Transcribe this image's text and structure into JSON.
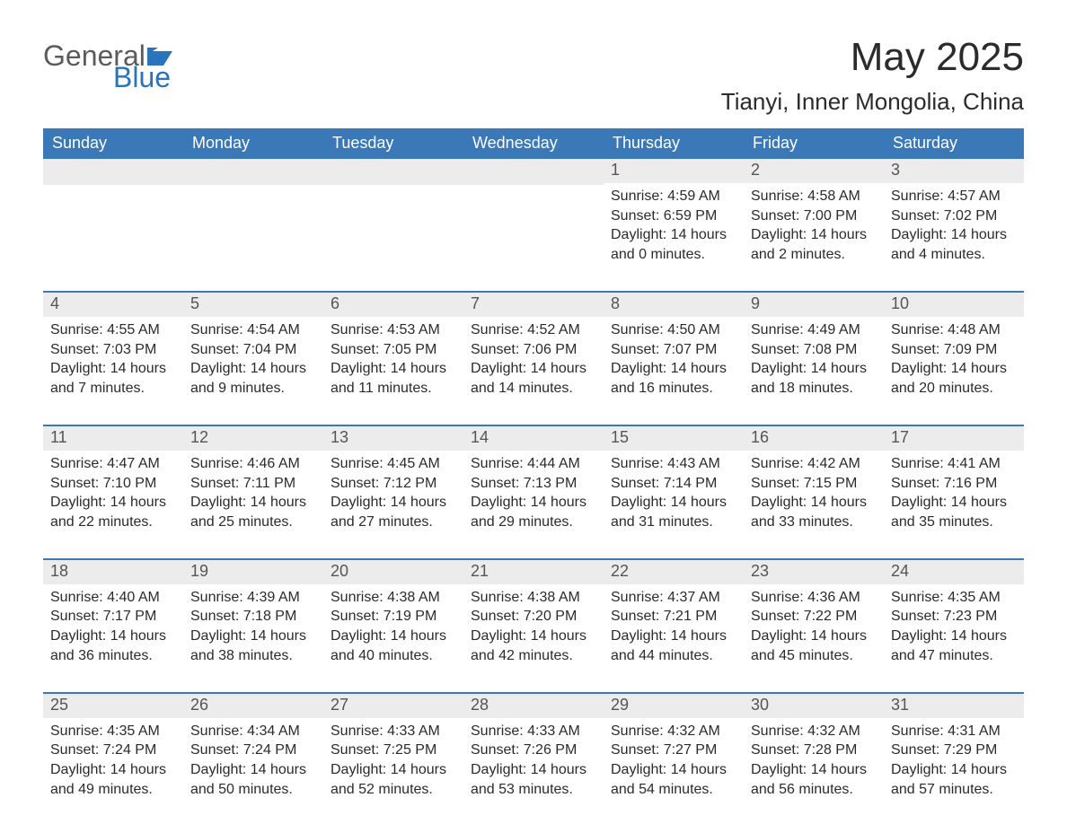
{
  "brand": {
    "word1": "General",
    "word2": "Blue",
    "gray_color": "#5b5b5b",
    "blue_color": "#2a74bb"
  },
  "title": {
    "month": "May 2025",
    "location": "Tianyi, Inner Mongolia, China"
  },
  "styling": {
    "header_bg": "#3a78b8",
    "header_text": "#ffffff",
    "row_divider": "#3a78b8",
    "day_number_bg": "#ececec",
    "day_number_color": "#555555",
    "body_text_color": "#2b2b2b",
    "page_bg": "#ffffff",
    "dow_fontsize": 18,
    "daynum_fontsize": 18,
    "body_fontsize": 16,
    "title_fontsize": 44,
    "location_fontsize": 26
  },
  "days_of_week": [
    "Sunday",
    "Monday",
    "Tuesday",
    "Wednesday",
    "Thursday",
    "Friday",
    "Saturday"
  ],
  "weeks": [
    [
      {
        "blank": true
      },
      {
        "blank": true
      },
      {
        "blank": true
      },
      {
        "blank": true
      },
      {
        "n": 1,
        "sr": "Sunrise: 4:59 AM",
        "ss": "Sunset: 6:59 PM",
        "d1": "Daylight: 14 hours",
        "d2": "and 0 minutes."
      },
      {
        "n": 2,
        "sr": "Sunrise: 4:58 AM",
        "ss": "Sunset: 7:00 PM",
        "d1": "Daylight: 14 hours",
        "d2": "and 2 minutes."
      },
      {
        "n": 3,
        "sr": "Sunrise: 4:57 AM",
        "ss": "Sunset: 7:02 PM",
        "d1": "Daylight: 14 hours",
        "d2": "and 4 minutes."
      }
    ],
    [
      {
        "n": 4,
        "sr": "Sunrise: 4:55 AM",
        "ss": "Sunset: 7:03 PM",
        "d1": "Daylight: 14 hours",
        "d2": "and 7 minutes."
      },
      {
        "n": 5,
        "sr": "Sunrise: 4:54 AM",
        "ss": "Sunset: 7:04 PM",
        "d1": "Daylight: 14 hours",
        "d2": "and 9 minutes."
      },
      {
        "n": 6,
        "sr": "Sunrise: 4:53 AM",
        "ss": "Sunset: 7:05 PM",
        "d1": "Daylight: 14 hours",
        "d2": "and 11 minutes."
      },
      {
        "n": 7,
        "sr": "Sunrise: 4:52 AM",
        "ss": "Sunset: 7:06 PM",
        "d1": "Daylight: 14 hours",
        "d2": "and 14 minutes."
      },
      {
        "n": 8,
        "sr": "Sunrise: 4:50 AM",
        "ss": "Sunset: 7:07 PM",
        "d1": "Daylight: 14 hours",
        "d2": "and 16 minutes."
      },
      {
        "n": 9,
        "sr": "Sunrise: 4:49 AM",
        "ss": "Sunset: 7:08 PM",
        "d1": "Daylight: 14 hours",
        "d2": "and 18 minutes."
      },
      {
        "n": 10,
        "sr": "Sunrise: 4:48 AM",
        "ss": "Sunset: 7:09 PM",
        "d1": "Daylight: 14 hours",
        "d2": "and 20 minutes."
      }
    ],
    [
      {
        "n": 11,
        "sr": "Sunrise: 4:47 AM",
        "ss": "Sunset: 7:10 PM",
        "d1": "Daylight: 14 hours",
        "d2": "and 22 minutes."
      },
      {
        "n": 12,
        "sr": "Sunrise: 4:46 AM",
        "ss": "Sunset: 7:11 PM",
        "d1": "Daylight: 14 hours",
        "d2": "and 25 minutes."
      },
      {
        "n": 13,
        "sr": "Sunrise: 4:45 AM",
        "ss": "Sunset: 7:12 PM",
        "d1": "Daylight: 14 hours",
        "d2": "and 27 minutes."
      },
      {
        "n": 14,
        "sr": "Sunrise: 4:44 AM",
        "ss": "Sunset: 7:13 PM",
        "d1": "Daylight: 14 hours",
        "d2": "and 29 minutes."
      },
      {
        "n": 15,
        "sr": "Sunrise: 4:43 AM",
        "ss": "Sunset: 7:14 PM",
        "d1": "Daylight: 14 hours",
        "d2": "and 31 minutes."
      },
      {
        "n": 16,
        "sr": "Sunrise: 4:42 AM",
        "ss": "Sunset: 7:15 PM",
        "d1": "Daylight: 14 hours",
        "d2": "and 33 minutes."
      },
      {
        "n": 17,
        "sr": "Sunrise: 4:41 AM",
        "ss": "Sunset: 7:16 PM",
        "d1": "Daylight: 14 hours",
        "d2": "and 35 minutes."
      }
    ],
    [
      {
        "n": 18,
        "sr": "Sunrise: 4:40 AM",
        "ss": "Sunset: 7:17 PM",
        "d1": "Daylight: 14 hours",
        "d2": "and 36 minutes."
      },
      {
        "n": 19,
        "sr": "Sunrise: 4:39 AM",
        "ss": "Sunset: 7:18 PM",
        "d1": "Daylight: 14 hours",
        "d2": "and 38 minutes."
      },
      {
        "n": 20,
        "sr": "Sunrise: 4:38 AM",
        "ss": "Sunset: 7:19 PM",
        "d1": "Daylight: 14 hours",
        "d2": "and 40 minutes."
      },
      {
        "n": 21,
        "sr": "Sunrise: 4:38 AM",
        "ss": "Sunset: 7:20 PM",
        "d1": "Daylight: 14 hours",
        "d2": "and 42 minutes."
      },
      {
        "n": 22,
        "sr": "Sunrise: 4:37 AM",
        "ss": "Sunset: 7:21 PM",
        "d1": "Daylight: 14 hours",
        "d2": "and 44 minutes."
      },
      {
        "n": 23,
        "sr": "Sunrise: 4:36 AM",
        "ss": "Sunset: 7:22 PM",
        "d1": "Daylight: 14 hours",
        "d2": "and 45 minutes."
      },
      {
        "n": 24,
        "sr": "Sunrise: 4:35 AM",
        "ss": "Sunset: 7:23 PM",
        "d1": "Daylight: 14 hours",
        "d2": "and 47 minutes."
      }
    ],
    [
      {
        "n": 25,
        "sr": "Sunrise: 4:35 AM",
        "ss": "Sunset: 7:24 PM",
        "d1": "Daylight: 14 hours",
        "d2": "and 49 minutes."
      },
      {
        "n": 26,
        "sr": "Sunrise: 4:34 AM",
        "ss": "Sunset: 7:24 PM",
        "d1": "Daylight: 14 hours",
        "d2": "and 50 minutes."
      },
      {
        "n": 27,
        "sr": "Sunrise: 4:33 AM",
        "ss": "Sunset: 7:25 PM",
        "d1": "Daylight: 14 hours",
        "d2": "and 52 minutes."
      },
      {
        "n": 28,
        "sr": "Sunrise: 4:33 AM",
        "ss": "Sunset: 7:26 PM",
        "d1": "Daylight: 14 hours",
        "d2": "and 53 minutes."
      },
      {
        "n": 29,
        "sr": "Sunrise: 4:32 AM",
        "ss": "Sunset: 7:27 PM",
        "d1": "Daylight: 14 hours",
        "d2": "and 54 minutes."
      },
      {
        "n": 30,
        "sr": "Sunrise: 4:32 AM",
        "ss": "Sunset: 7:28 PM",
        "d1": "Daylight: 14 hours",
        "d2": "and 56 minutes."
      },
      {
        "n": 31,
        "sr": "Sunrise: 4:31 AM",
        "ss": "Sunset: 7:29 PM",
        "d1": "Daylight: 14 hours",
        "d2": "and 57 minutes."
      }
    ]
  ]
}
